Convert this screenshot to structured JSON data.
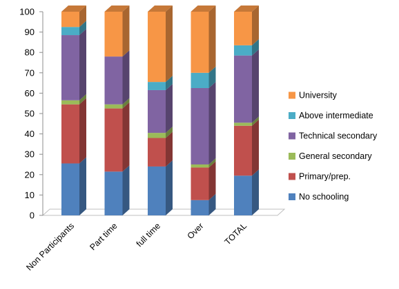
{
  "chart_data": {
    "type": "bar",
    "stacked": true,
    "three_d": true,
    "categories": [
      "Non Participants",
      "Part time",
      "full time",
      "Over",
      "TOTAL"
    ],
    "ylim": [
      0,
      100
    ],
    "yticks": [
      0,
      10,
      20,
      30,
      40,
      50,
      60,
      70,
      80,
      90,
      100
    ],
    "grid": false,
    "legend_position": "right",
    "series": [
      {
        "name": "No schooling",
        "color": "#4F81BD",
        "values": [
          25.5,
          21.5,
          24,
          7.5,
          19.5
        ]
      },
      {
        "name": "Primary/prep.",
        "color": "#C0504D",
        "values": [
          29,
          31,
          14,
          16,
          24.5
        ]
      },
      {
        "name": "General secondary",
        "color": "#9BBB59",
        "values": [
          2,
          2,
          2.5,
          1.5,
          1.5
        ]
      },
      {
        "name": "Technical secondary",
        "color": "#8064A2",
        "values": [
          32,
          23.5,
          21,
          37.5,
          33
        ]
      },
      {
        "name": "Above intermediate",
        "color": "#4BACC6",
        "values": [
          4,
          0,
          4,
          7.5,
          5
        ]
      },
      {
        "name": "University",
        "color": "#F79646",
        "values": [
          7.5,
          22,
          34.5,
          30,
          16.5
        ]
      }
    ]
  }
}
